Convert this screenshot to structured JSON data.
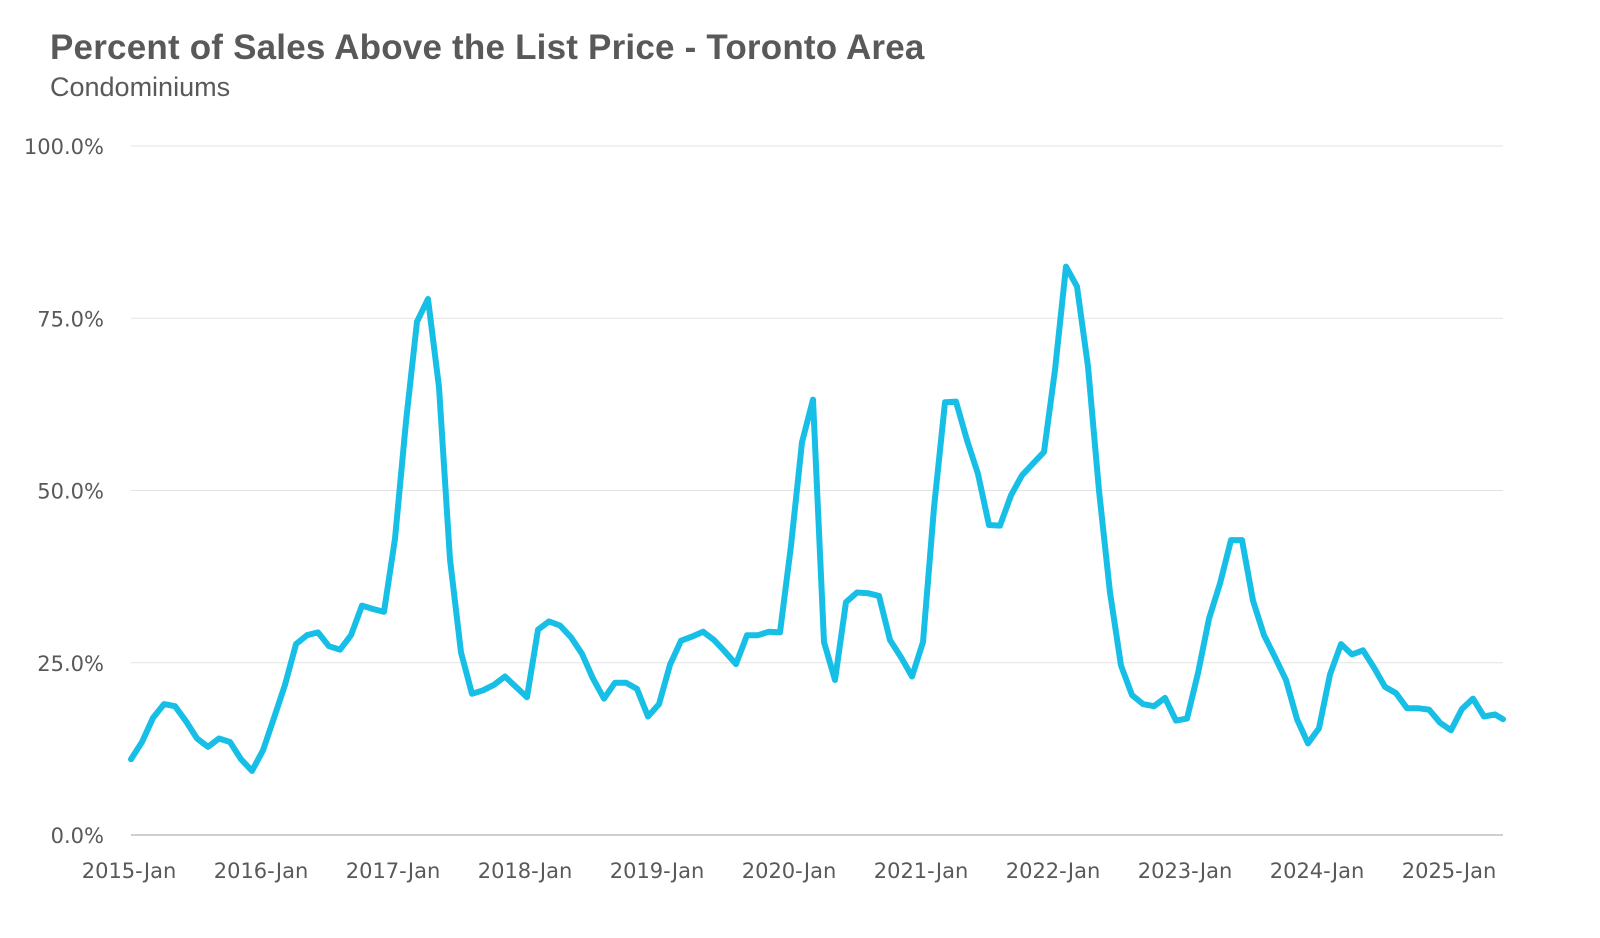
{
  "header": {
    "title": "Percent of Sales Above the List Price - Toronto Area",
    "subtitle": "Condominiums"
  },
  "colors": {
    "series": "#17BFE6",
    "text": "#595959",
    "grid": "#e3e3e3",
    "axis": "#bfbfbf"
  },
  "chart_data": {
    "type": "line",
    "title": "Percent of Sales Above the List Price - Toronto Area",
    "subtitle": "Condominiums",
    "xlabel": "",
    "ylabel": "",
    "x_start": "2015-Jan",
    "x_interval": "monthly",
    "x_ticks": [
      "2015-Jan",
      "2016-Jan",
      "2017-Jan",
      "2018-Jan",
      "2019-Jan",
      "2020-Jan",
      "2021-Jan",
      "2022-Jan",
      "2023-Jan",
      "2024-Jan",
      "2025-Jan"
    ],
    "y_ticks": [
      "0.0%",
      "25.0%",
      "50.0%",
      "75.0%",
      "100.0%"
    ],
    "ylim": [
      0,
      100
    ],
    "y_unit": "%",
    "grid": "horizontal",
    "legend": "none",
    "series": [
      {
        "values": [
          11.0,
          13.5,
          17.0,
          19.0,
          18.7,
          16.5,
          14.0,
          12.8,
          14.0,
          13.5,
          11.0,
          9.3,
          12.3,
          17.0,
          21.8,
          27.7,
          29.0,
          29.4,
          27.4,
          26.9,
          29.0,
          33.3,
          32.8,
          32.4,
          43.0,
          60.0,
          74.5,
          77.8,
          65.0,
          40.0,
          26.5,
          20.5,
          21.0,
          21.8,
          23.0,
          21.5,
          20.0,
          29.8,
          31.0,
          30.4,
          28.7,
          26.3,
          22.7,
          19.8,
          22.1,
          22.1,
          21.2,
          17.2,
          19.0,
          24.7,
          28.2,
          28.8,
          29.5,
          28.3,
          26.6,
          24.8,
          29.0,
          29.0,
          29.5,
          29.4,
          42.0,
          57.0,
          63.2,
          28.0,
          22.5,
          33.8,
          35.2,
          35.1,
          34.7,
          28.3,
          25.8,
          23.0,
          28.0,
          47.5,
          62.8,
          62.9,
          57.3,
          52.4,
          45.0,
          44.9,
          49.3,
          52.2,
          53.9,
          55.6,
          67.5,
          82.5,
          79.6,
          68.0,
          50.0,
          35.2,
          24.6,
          20.3,
          19.0,
          18.7,
          19.9,
          16.6,
          16.9,
          23.5,
          31.4,
          36.5,
          42.8,
          42.8,
          34.0,
          29.0,
          25.8,
          22.5,
          16.8,
          13.3,
          15.5,
          23.3,
          27.7,
          26.2,
          26.8,
          24.3,
          21.5,
          20.6,
          18.4,
          18.4,
          18.2,
          16.3,
          15.2,
          18.3,
          19.8,
          17.2,
          17.5,
          16.8
        ]
      }
    ]
  }
}
